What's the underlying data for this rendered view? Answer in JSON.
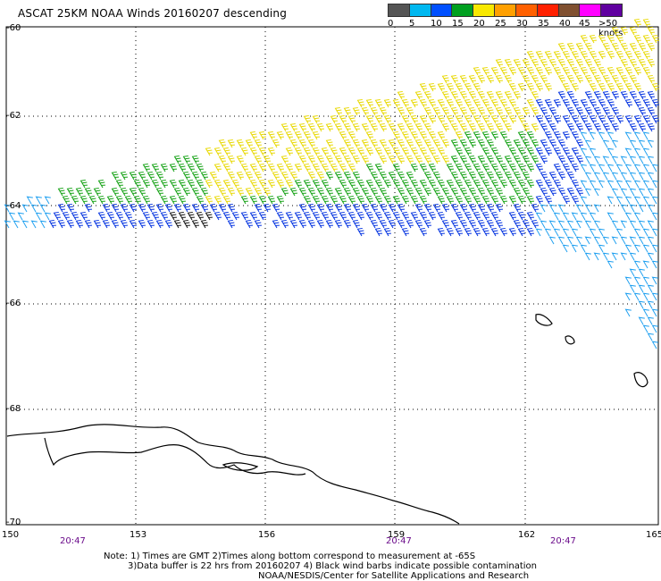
{
  "title": "ASCAT 25KM NOAA Winds 20160207 descending",
  "legend": {
    "colors": [
      "#555555",
      "#00b8f0",
      "#0050ff",
      "#00a020",
      "#f8e800",
      "#ffa000",
      "#ff6000",
      "#ff2000",
      "#805030",
      "#ff00ff",
      "#6000a0"
    ],
    "labels": [
      "0",
      "5",
      "10",
      "15",
      "20",
      "25",
      "30",
      "35",
      "40",
      "45",
      ">50 knots"
    ]
  },
  "lat_labels": [
    "-60",
    "-62",
    "-64",
    "-66",
    "-68",
    "-70"
  ],
  "lon_labels": [
    "150",
    "153",
    "156",
    "159",
    "162",
    "165"
  ],
  "time_labels": [
    "20:47",
    "20:47",
    "20:47"
  ],
  "notes": [
    "Note: 1) Times are GMT 2)Times along bottom correspond to measurement at -65S",
    "3)Data buffer is 22 hrs from 20160207 4) Black wind barbs indicate possible contamination",
    "NOAA/NESDIS/Center for Satellite Applications and Research"
  ],
  "colors": {
    "time_label": "#6a0a8a",
    "coast": "#000000",
    "grid": "#000000"
  }
}
